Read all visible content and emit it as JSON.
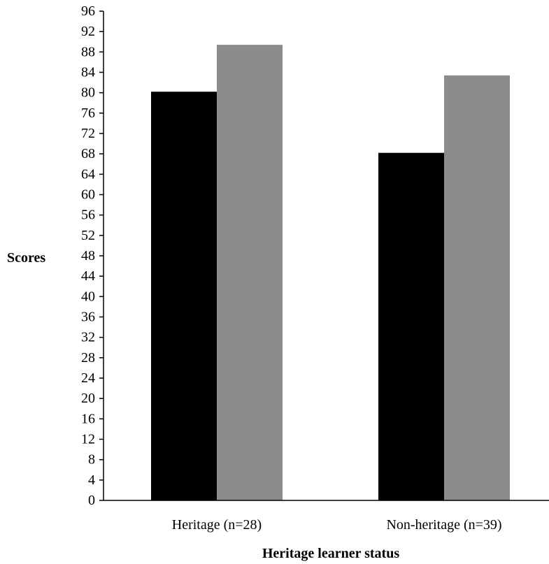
{
  "chart_data": {
    "type": "bar",
    "title": "",
    "xlabel": "Heritage learner status",
    "ylabel": "Scores",
    "ylim": [
      0,
      96
    ],
    "yticks": [
      0,
      4,
      8,
      12,
      16,
      20,
      24,
      28,
      32,
      36,
      40,
      44,
      48,
      52,
      56,
      60,
      64,
      68,
      72,
      76,
      80,
      84,
      88,
      92,
      96
    ],
    "categories": [
      "Heritage (n=28)",
      "Non-heritage (n=39)"
    ],
    "series": [
      {
        "values": [
          80.2,
          68.2
        ],
        "color": "#000000"
      },
      {
        "values": [
          89.4,
          83.4
        ],
        "color": "#8c8c8c"
      }
    ],
    "grid": false,
    "legend": "none"
  }
}
